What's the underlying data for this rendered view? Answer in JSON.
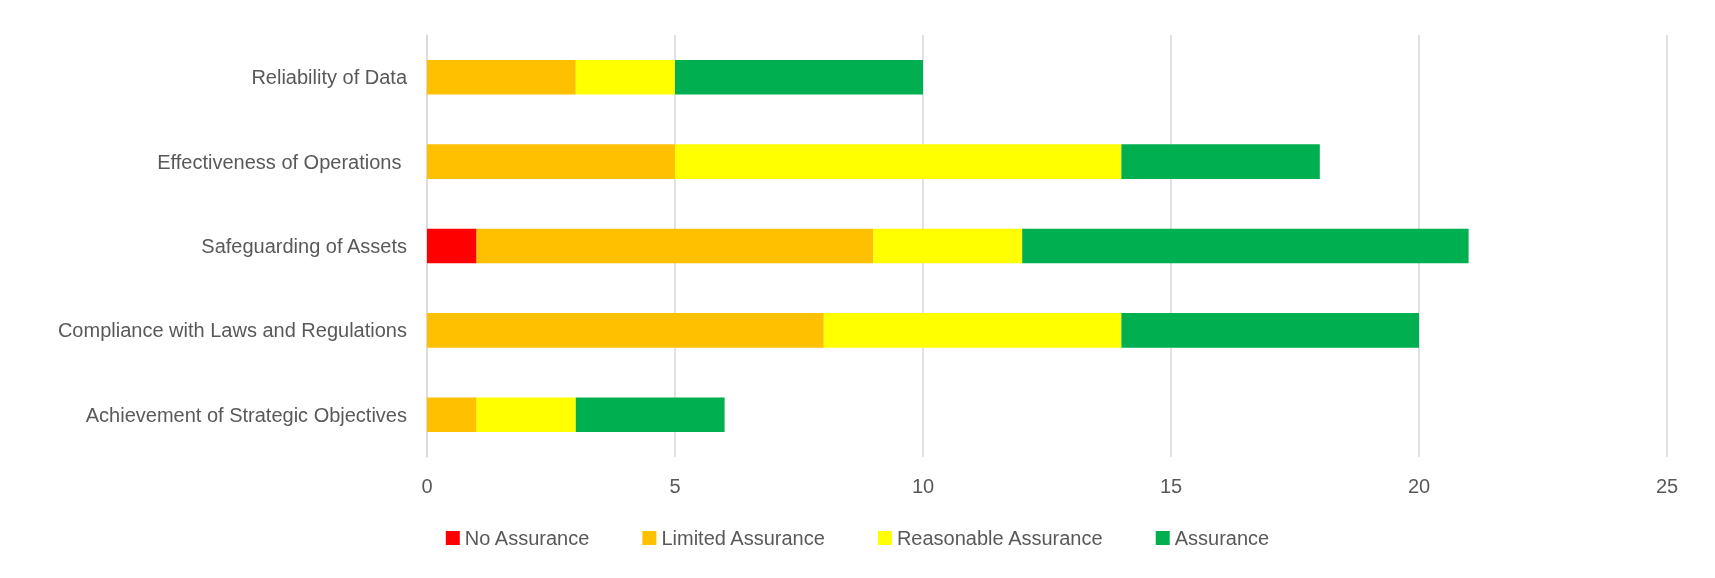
{
  "chart_data": {
    "type": "bar",
    "orientation": "horizontal",
    "stacked": true,
    "categories": [
      "Reliability of Data",
      "Effectiveness of Operations ",
      "Safeguarding of Assets",
      "Compliance with Laws and Regulations",
      "Achievement of Strategic Objectives"
    ],
    "series": [
      {
        "name": "No Assurance",
        "color": "#ff0000",
        "values": [
          null,
          null,
          1,
          null,
          null
        ]
      },
      {
        "name": "Limited Assurance",
        "color": "#ffc000",
        "values": [
          3,
          5,
          8,
          8,
          1
        ]
      },
      {
        "name": "Reasonable Assurance",
        "color": "#ffff00",
        "values": [
          2,
          9,
          3,
          6,
          2
        ]
      },
      {
        "name": "Assurance",
        "color": "#00b050",
        "values": [
          5,
          4,
          9,
          6,
          3
        ]
      }
    ],
    "xlim": [
      0,
      25
    ],
    "xticks": [
      0,
      5,
      10,
      15,
      20,
      25
    ],
    "grid": "x",
    "legend": "bottom"
  }
}
